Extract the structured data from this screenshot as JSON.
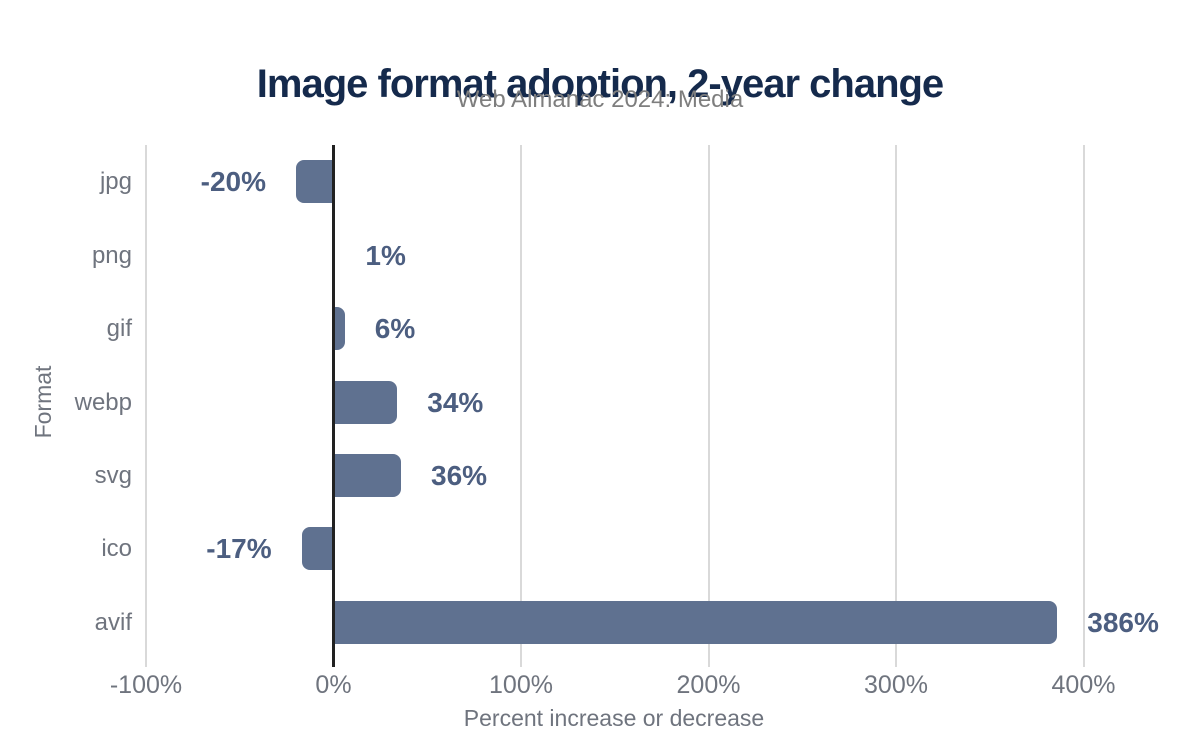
{
  "header": {
    "title": "Image format adoption, 2-year change",
    "subtitle": "Web Almanac 2024: Media"
  },
  "chart_data": {
    "type": "bar",
    "orientation": "horizontal",
    "title": "Image format adoption, 2-year change",
    "subtitle": "Web Almanac 2024: Media",
    "categories": [
      "jpg",
      "png",
      "gif",
      "webp",
      "svg",
      "ico",
      "avif"
    ],
    "values": [
      -20,
      1,
      6,
      34,
      36,
      -17,
      386
    ],
    "value_labels": [
      "-20%",
      "1%",
      "6%",
      "34%",
      "36%",
      "-17%",
      "386%"
    ],
    "xlabel": "Percent increase or decrease",
    "ylabel": "Format",
    "xlim": [
      -100,
      460
    ],
    "xticks": [
      -100,
      0,
      100,
      200,
      300,
      400
    ],
    "xtick_labels": [
      "-100%",
      "0%",
      "100%",
      "200%",
      "300%",
      "400%"
    ],
    "grid": "vertical-gridlines-on",
    "legend": "none",
    "colors": {
      "bar": "#5f7190",
      "value_label": "#4c5e80",
      "title": "#152a4c",
      "subtitle": "#7e7e7e",
      "muted_text": "#6f747e",
      "gridline": "#d9d9d9",
      "zero_line": "#212121",
      "background": "#ffffff"
    }
  }
}
